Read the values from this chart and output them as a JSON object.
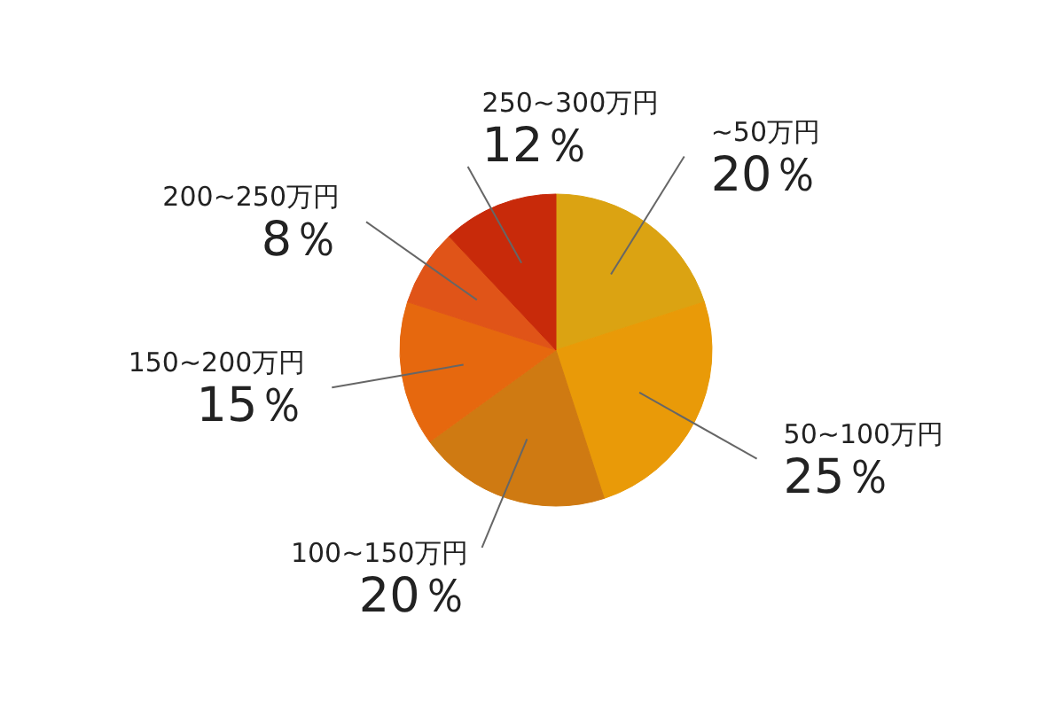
{
  "chart_data": {
    "type": "pie",
    "categories": [
      "~50万円",
      "50~100万円",
      "100~150万円",
      "150~200万円",
      "200~250万円",
      "250~300万円"
    ],
    "values": [
      20,
      25,
      20,
      15,
      8,
      12
    ],
    "colors": [
      "#dba312",
      "#e99a08",
      "#cf7a12",
      "#e6680e",
      "#e05418",
      "#c82a0a"
    ],
    "value_labels": [
      "20％",
      "25％",
      "20％",
      "15％",
      "8％",
      "12％"
    ]
  }
}
